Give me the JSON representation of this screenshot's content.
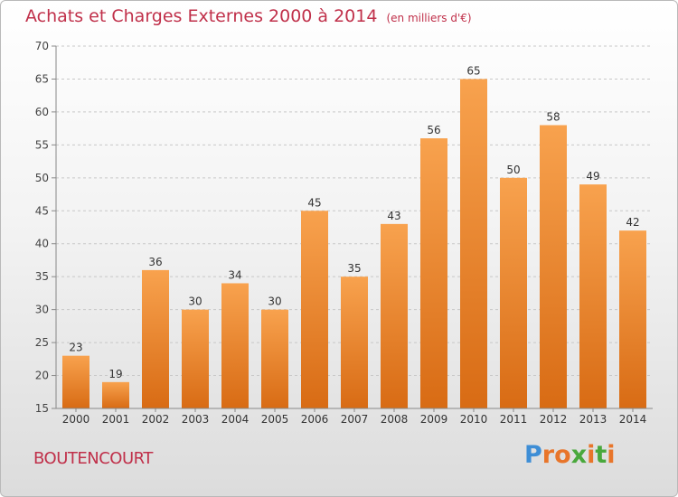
{
  "title": "Achats et Charges Externes 2000 à 2014",
  "subtitle": "(en milliers d'€)",
  "commune": "BOUTENCOURT",
  "logo": {
    "letters": [
      "P",
      "r",
      "o",
      "x",
      "i",
      "t",
      "i"
    ],
    "colors": [
      "#3e8ed6",
      "#e8752a",
      "#e8752a",
      "#49a83c",
      "#e8752a",
      "#49a83c",
      "#e8752a"
    ]
  },
  "colors": {
    "bar_top": "#f8a24e",
    "bar_bottom": "#d86b14",
    "title": "#c0304a"
  },
  "chart_data": {
    "type": "bar",
    "title": "Achats et Charges Externes 2000 à 2014",
    "subtitle": "(en milliers d'€)",
    "categories": [
      "2000",
      "2001",
      "2002",
      "2003",
      "2004",
      "2005",
      "2006",
      "2007",
      "2008",
      "2009",
      "2010",
      "2011",
      "2012",
      "2013",
      "2014"
    ],
    "values": [
      23,
      19,
      36,
      30,
      34,
      30,
      45,
      35,
      43,
      56,
      65,
      50,
      58,
      49,
      42
    ],
    "ylim": [
      15,
      70
    ],
    "yticks": [
      15,
      20,
      25,
      30,
      35,
      40,
      45,
      50,
      55,
      60,
      65,
      70
    ],
    "grid": "horizontal dashed",
    "data_labels": true
  }
}
